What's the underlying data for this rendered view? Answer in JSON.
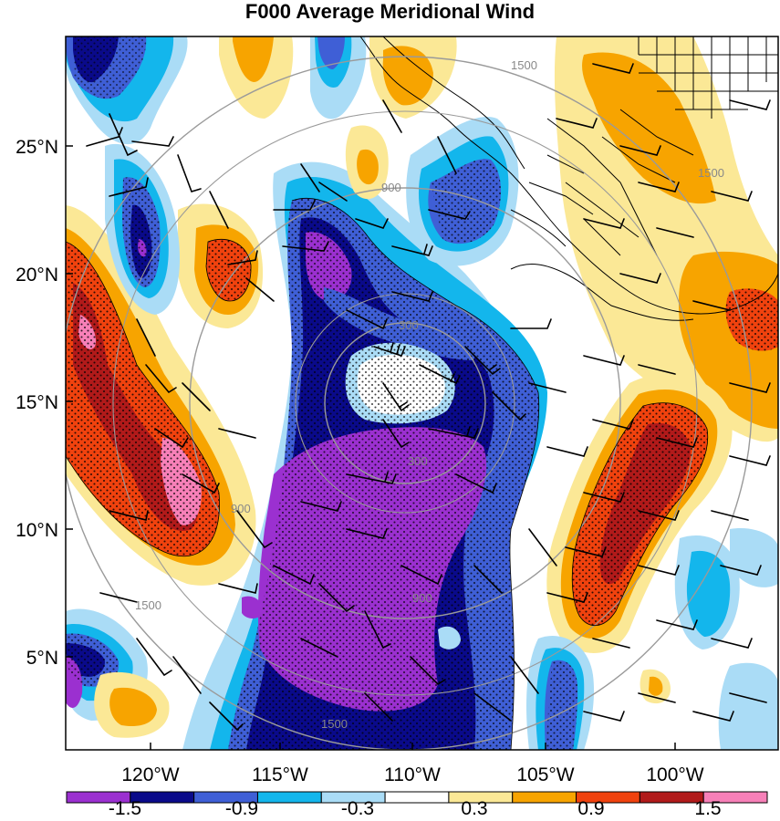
{
  "title": "F000 Average Meridional Wind",
  "map": {
    "lat_ticks": [
      "25°N",
      "20°N",
      "15°N",
      "10°N",
      "5°N"
    ],
    "lon_ticks": [
      "120°W",
      "115°W",
      "110°W",
      "105°W",
      "100°W"
    ],
    "range_ring_labels": [
      "300",
      "900",
      "1500"
    ],
    "stipple": "dotted shading over significant regions"
  },
  "colorbar": {
    "labels": [
      "-1.5",
      "-0.9",
      "-0.3",
      "0.3",
      "0.9",
      "1.5"
    ],
    "colors": [
      "#9b30d0",
      "#0a0a8a",
      "#3f5fd6",
      "#13b6ec",
      "#aadcf6",
      "#ffffff",
      "#fbe896",
      "#f7a400",
      "#f0420e",
      "#b11a1a",
      "#f780b8"
    ]
  }
}
